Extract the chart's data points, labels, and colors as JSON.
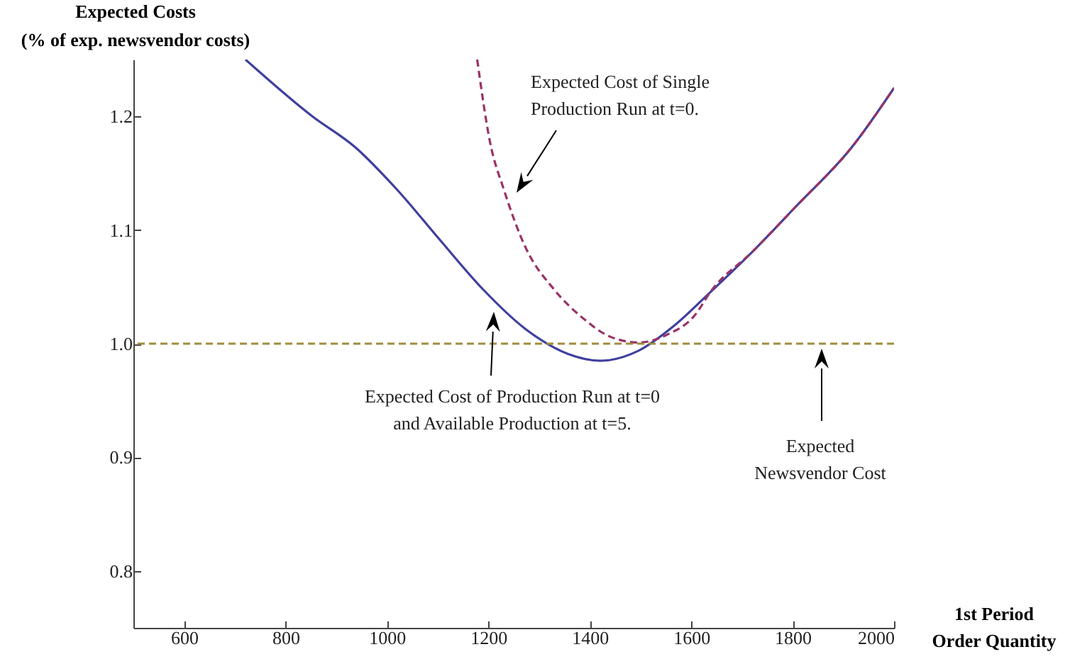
{
  "chart_data": {
    "type": "line",
    "xlabel": "1st Period Order Quantity",
    "ylabel": "Expected Costs (% of exp. newsvendor costs)",
    "xlim": [
      500,
      2000
    ],
    "ylim": [
      0.75,
      1.25
    ],
    "xticks": [
      600,
      800,
      1000,
      1200,
      1400,
      1600,
      1800,
      2000
    ],
    "yticks": [
      0.8,
      0.9,
      {
        "value": 1,
        "label": "1.0"
      },
      1.1,
      1.2
    ],
    "grid": false,
    "series": [
      {
        "color": "#3f3f9f",
        "line_style": "solid",
        "x": [
          721,
          853,
          937,
          1021,
          1105,
          1189,
          1273,
          1357,
          1421,
          1497,
          1567,
          1637,
          1721,
          1805,
          1917,
          2000
        ],
        "values": [
          1.25,
          1.2,
          1.173,
          1.135,
          1.091,
          1.048,
          1.013,
          0.991,
          0.985,
          0.994,
          1.016,
          1.045,
          1.081,
          1.12,
          1.173,
          1.225
        ]
      },
      {
        "color": "#993366",
        "line_style": "dashed",
        "x": [
          1178,
          1203,
          1231,
          1273,
          1329,
          1385,
          1441,
          1497,
          1553,
          1609,
          1637,
          1721,
          1805,
          1917,
          2000
        ],
        "values": [
          1.25,
          1.178,
          1.135,
          1.085,
          1.048,
          1.023,
          1.006,
          1.001,
          1.008,
          1.026,
          1.045,
          1.081,
          1.12,
          1.173,
          1.225
        ]
      }
    ],
    "ref_lines": [
      {
        "axis": "y",
        "value": 1,
        "color": "#a08c3c",
        "line_style": "dashed"
      }
    ],
    "annotations": [
      "Expected Cost of Single Production Run at t=0.",
      "Expected Cost of Production Run at t=0 and Available Production at t=5.",
      "Expected Newsvendor Cost"
    ]
  }
}
